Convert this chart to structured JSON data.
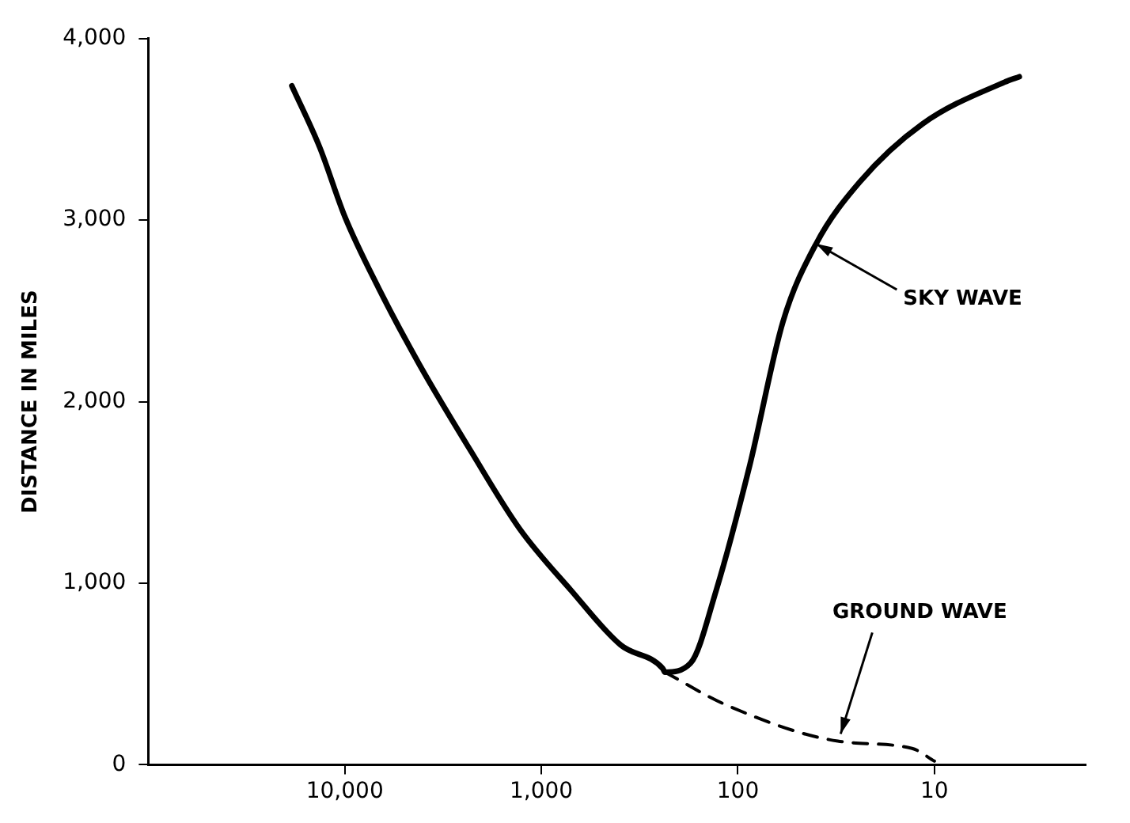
{
  "chart_data": {
    "type": "line",
    "ylabel": "DISTANCE IN MILES",
    "series": [
      {
        "color": "#000000",
        "line_style": "solid",
        "x": [
          18600,
          13400,
          10000,
          6760,
          4150,
          2290,
          1290,
          705,
          395,
          241,
          235,
          174,
          129,
          87,
          59,
          40,
          24,
          11.5,
          4.4,
          3.7
        ],
        "values": [
          3740,
          3400,
          3020,
          2630,
          2200,
          1730,
          1300,
          960,
          660,
          530,
          510,
          560,
          960,
          1650,
          2440,
          2870,
          3210,
          3530,
          3760,
          3790
        ]
      },
      {
        "color": "#000000",
        "line_style": "dashed",
        "x": [
          235,
          115,
          31,
          13,
          10
        ],
        "values": [
          510,
          330,
          130,
          90,
          20
        ]
      }
    ],
    "log": "x",
    "xlim": [
      100000,
      1.7
    ],
    "xticks": [
      {
        "value": 10000,
        "label": "10,000"
      },
      {
        "value": 1000,
        "label": "1,000"
      },
      {
        "value": 100,
        "label": "100"
      },
      {
        "value": 10,
        "label": "10"
      }
    ],
    "ylim": [
      0,
      4000
    ],
    "yticks": [
      0,
      {
        "value": 1000,
        "label": "1,000"
      },
      {
        "value": 2000,
        "label": "2,000"
      },
      {
        "value": 3000,
        "label": "3,000"
      },
      {
        "value": 4000,
        "label": "4,000"
      }
    ],
    "grid": false,
    "legend": false,
    "marker": "none",
    "annotations": [
      {
        "text": "SKY WAVE",
        "x": 40,
        "y": 2870
      },
      {
        "text": "GROUND WAVE",
        "x": 30,
        "y": 170
      }
    ]
  }
}
